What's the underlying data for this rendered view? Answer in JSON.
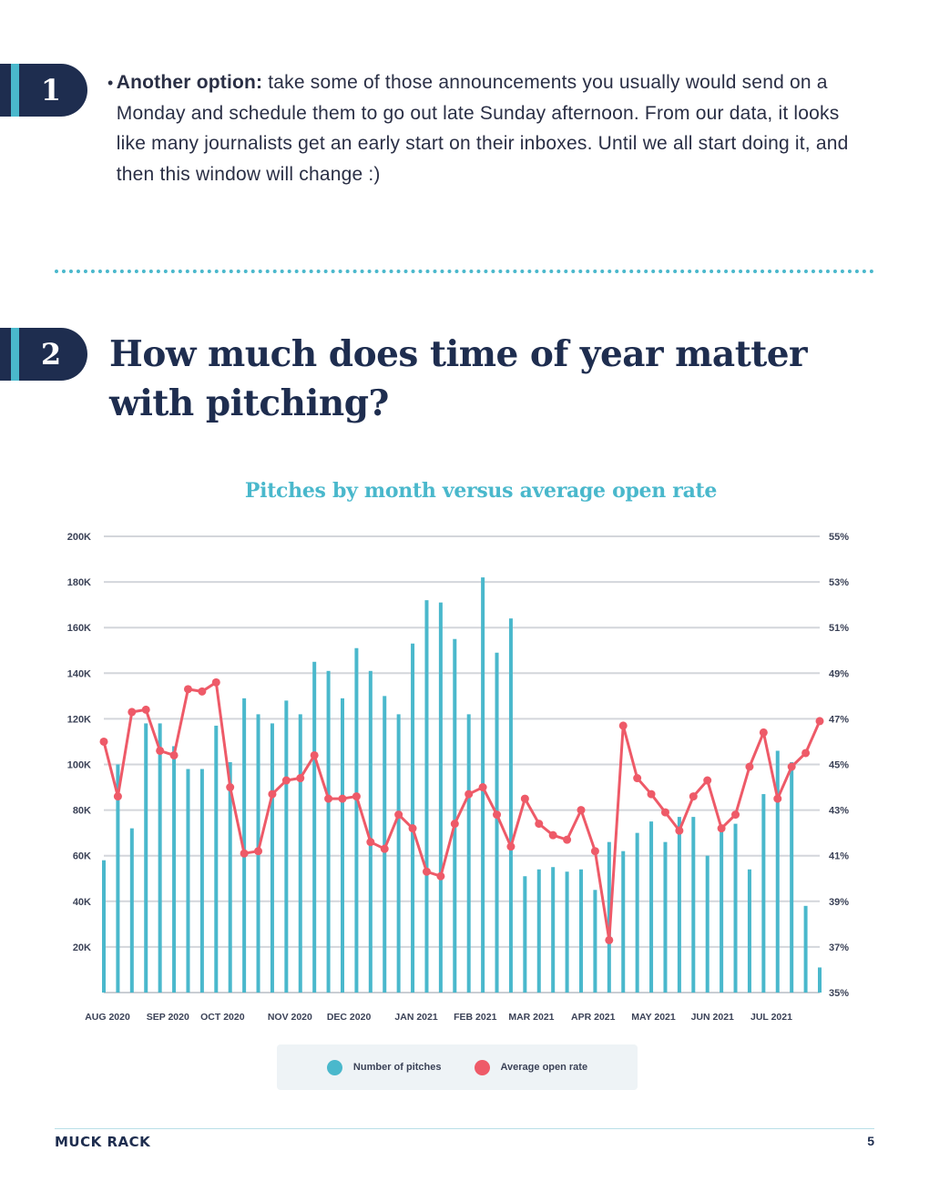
{
  "section1": {
    "number": "1",
    "bullet": "•",
    "bold": "Another option:",
    "text": " take some of those announcements you usually would send on a Monday and schedule them to go out late Sunday afternoon. From our data, it looks like many journalists get an early start on their inboxes. Until we all start doing it, and then this window will change :)"
  },
  "section2": {
    "number": "2",
    "heading": "How much does time of year matter with pitching?"
  },
  "colors": {
    "navy": "#1e2d4f",
    "teal": "#4ab8cc",
    "red": "#ee5a68"
  },
  "chart_data": {
    "type": "bar+line",
    "title": "Pitches by month versus average open rate",
    "left_axis": {
      "ticks": [
        "200K",
        "180K",
        "160K",
        "140K",
        "120K",
        "100K",
        "80K",
        "60K",
        "40K",
        "20K"
      ],
      "range": [
        0,
        200000
      ]
    },
    "right_axis": {
      "ticks": [
        "55%",
        "53%",
        "51%",
        "49%",
        "47%",
        "45%",
        "43%",
        "41%",
        "39%",
        "37%",
        "35%"
      ],
      "range": [
        35,
        55
      ]
    },
    "x_labels": [
      "AUG 2020",
      "SEP 2020",
      "OCT 2020",
      "NOV 2020",
      "DEC 2020",
      "JAN 2021",
      "FEB 2021",
      "MAR 2021",
      "APR 2021",
      "MAY 2021",
      "JUN 2021",
      "JUL 2021"
    ],
    "x_label_positions": [
      0,
      4.3,
      8.2,
      13,
      17.2,
      22,
      26.2,
      30.2,
      34.6,
      38.9,
      43.1,
      47.3
    ],
    "series": [
      {
        "name": "Number of pitches",
        "axis": "left",
        "type": "bar",
        "values": [
          58000,
          100000,
          72000,
          118000,
          118000,
          108000,
          98000,
          98000,
          117000,
          101000,
          129000,
          122000,
          118000,
          128000,
          122000,
          145000,
          141000,
          129000,
          151000,
          141000,
          130000,
          122000,
          153000,
          172000,
          171000,
          155000,
          122000,
          182000,
          149000,
          164000,
          51000,
          54000,
          55000,
          53000,
          54000,
          45000,
          66000,
          62000,
          70000,
          75000,
          66000,
          77000,
          77000,
          60000,
          71000,
          74000,
          54000,
          87000,
          106000,
          101000,
          38000,
          11000
        ]
      },
      {
        "name": "Average open rate",
        "axis": "right",
        "type": "line",
        "values": [
          46.0,
          43.6,
          47.3,
          47.4,
          45.6,
          45.4,
          48.3,
          48.2,
          48.6,
          44.0,
          41.1,
          41.2,
          43.7,
          44.3,
          44.4,
          45.4,
          43.5,
          43.5,
          43.6,
          41.6,
          41.3,
          42.8,
          42.2,
          40.3,
          40.1,
          42.4,
          43.7,
          44.0,
          42.8,
          41.4,
          43.5,
          42.4,
          41.9,
          41.7,
          43.0,
          41.2,
          37.3,
          46.7,
          44.4,
          43.7,
          42.9,
          42.1,
          43.6,
          44.3,
          42.2,
          42.8,
          44.9,
          46.4,
          43.5,
          44.9,
          45.5,
          46.9
        ]
      }
    ],
    "grid": true,
    "legend": "bottom-center"
  },
  "legend": {
    "pitches": "Number of pitches",
    "open_rate": "Average open rate"
  },
  "footer": {
    "logo": "MUCK RACK",
    "page": "5"
  }
}
